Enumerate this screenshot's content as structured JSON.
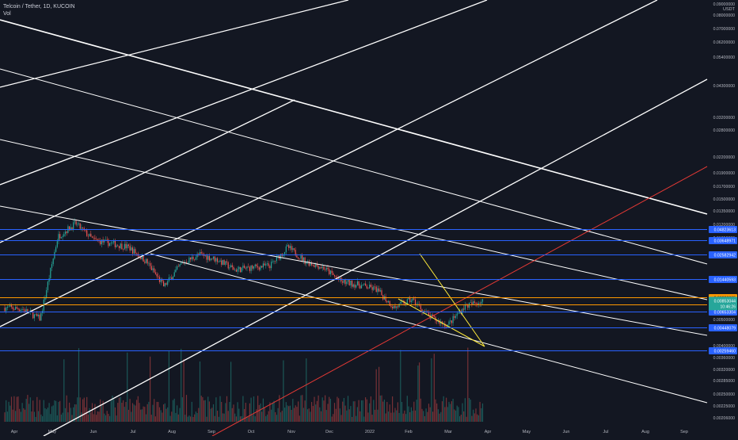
{
  "header": {
    "symbol_line": "Telcoin / Tether, 1D, KUCOIN",
    "volume_label": "Vol"
  },
  "chart_data": {
    "type": "candlestick",
    "title": "Telcoin / Tether, 1D, KUCOIN",
    "y_unit": "USDT",
    "y_scale": "log",
    "ylim": [
      0.002,
      0.1
    ],
    "x_ticks": [
      "Apr",
      "May",
      "Jun",
      "Jul",
      "Aug",
      "Sep",
      "Oct",
      "Nov",
      "Dec",
      "2022",
      "Feb",
      "Mar",
      "Apr",
      "May",
      "Jun",
      "Jul",
      "Aug",
      "Sep"
    ],
    "y_ticks": [
      "0.09000000",
      "0.08000000",
      "0.07000000",
      "0.06200000",
      "0.05400000",
      "0.04300000",
      "0.03200000",
      "0.02800000",
      "0.02200000",
      "0.01900000",
      "0.01700000",
      "0.01500000",
      "0.01350000",
      "0.01200000",
      "0.01050000",
      "0.00720000",
      "0.00560000",
      "0.00500000",
      "0.00400000",
      "0.00360000",
      "0.00320000",
      "0.00285000",
      "0.00250000",
      "0.00225000",
      "0.00206000"
    ],
    "horizontal_levels": [
      {
        "value": "0.04823613",
        "color": "#2962ff"
      },
      {
        "value": "0.03648971",
        "color": "#2962ff"
      },
      {
        "value": "0.02582942",
        "color": "#2962ff"
      },
      {
        "value": "0.01440593",
        "color": "#2962ff"
      },
      {
        "value": "0.00920305",
        "color": "#ff9800"
      },
      {
        "value": "0.00773953",
        "color": "#ff9800"
      },
      {
        "value": "0.00653304",
        "color": "#2962ff"
      },
      {
        "value": "0.00448079",
        "color": "#2962ff"
      },
      {
        "value": "0.00259460",
        "color": "#2962ff"
      }
    ],
    "last_price": {
      "value": "0.00853044",
      "countdown": "10:46:26",
      "color": "#26a69a"
    },
    "price_path": [
      [
        "Apr",
        0.0072
      ],
      [
        "mid-Apr",
        0.007
      ],
      [
        "late-Apr",
        0.0055
      ],
      [
        "May",
        0.04
      ],
      [
        "early-May",
        0.055
      ],
      [
        "mid-May",
        0.037
      ],
      [
        "Jun",
        0.034
      ],
      [
        "Jul",
        0.031
      ],
      [
        "mid-Jul",
        0.022
      ],
      [
        "late-Jul",
        0.012
      ],
      [
        "Aug",
        0.021
      ],
      [
        "mid-Aug",
        0.026
      ],
      [
        "Sep",
        0.023
      ],
      [
        "mid-Sep",
        0.018
      ],
      [
        "Oct",
        0.019
      ],
      [
        "mid-Oct",
        0.02
      ],
      [
        "Nov",
        0.031
      ],
      [
        "mid-Nov",
        0.022
      ],
      [
        "Dec",
        0.019
      ],
      [
        "mid-Dec",
        0.0135
      ],
      [
        "2022",
        0.0125
      ],
      [
        "mid-Jan",
        0.0112
      ],
      [
        "Feb",
        0.0072
      ],
      [
        "mid-Feb",
        0.0088
      ],
      [
        "Mar",
        0.0058
      ],
      [
        "mid-Mar",
        0.0047
      ],
      [
        "late-Mar",
        0.0075
      ],
      [
        "Apr",
        0.0085
      ]
    ],
    "grid": false,
    "legend": "none"
  }
}
